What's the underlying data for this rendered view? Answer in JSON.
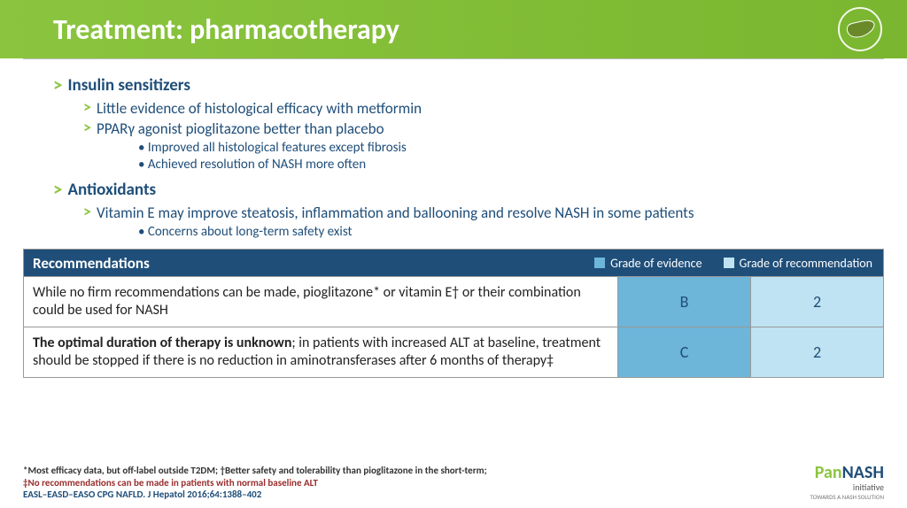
{
  "title": "Treatment: pharmacotherapy",
  "colors": {
    "greenBar": "#8bc53f",
    "navy": "#1f4e79",
    "evidenceSq": "#6db5d9",
    "recSq": "#bfe3f2",
    "row1c2": "#6db5d9",
    "row1c3": "#bfe3f2",
    "row2c2": "#6db5d9",
    "row2c3": "#bfe3f2"
  },
  "sections": [
    {
      "heading": "Insulin sensitizers",
      "items": [
        {
          "text": "Little evidence of histological efficacy with metformin",
          "sub": []
        },
        {
          "text": "PPARγ agonist pioglitazone better than placebo",
          "sub": [
            "Improved all histological features except fibrosis",
            "Achieved resolution of NASH more often"
          ]
        }
      ]
    },
    {
      "heading": "Antioxidants",
      "items": [
        {
          "text": "Vitamin E may improve steatosis, inflammation and ballooning and resolve NASH in some patients",
          "sub": [
            "Concerns about long-term safety exist"
          ]
        }
      ]
    }
  ],
  "table": {
    "header": {
      "c1": "Recommendations",
      "c2": "Grade of evidence",
      "c3": "Grade of recommendation"
    },
    "rows": [
      {
        "text": "While no firm recommendations can be made, pioglitazone* or vitamin E† or their combination could be used for NASH",
        "boldPrefix": "",
        "evidence": "B",
        "rec": "2",
        "bg2": "#6db5d9",
        "bg3": "#bfe3f2"
      },
      {
        "text": "; in patients with increased ALT at baseline, treatment should be stopped if there is no reduction in aminotransferases after 6 months of therapy‡",
        "boldPrefix": "The optimal duration of therapy is unknown",
        "evidence": "C",
        "rec": "2",
        "bg2": "#6db5d9",
        "bg3": "#bfe3f2"
      }
    ]
  },
  "footnotes": {
    "line1": "*Most efficacy data, but off-label outside T2DM; †Better safety and tolerability than pioglitazone in the short-term;",
    "line2": "‡No recommendations can be made in patients with normal baseline ALT",
    "line3": "EASL–EASD–EASO CPG NAFLD. J Hepatol 2016;64:1388–402"
  },
  "brand": {
    "p1": "Pan",
    "p2": "NASH",
    "init": "initiative",
    "tag": "TOWARDS A NASH SOLUTION"
  }
}
